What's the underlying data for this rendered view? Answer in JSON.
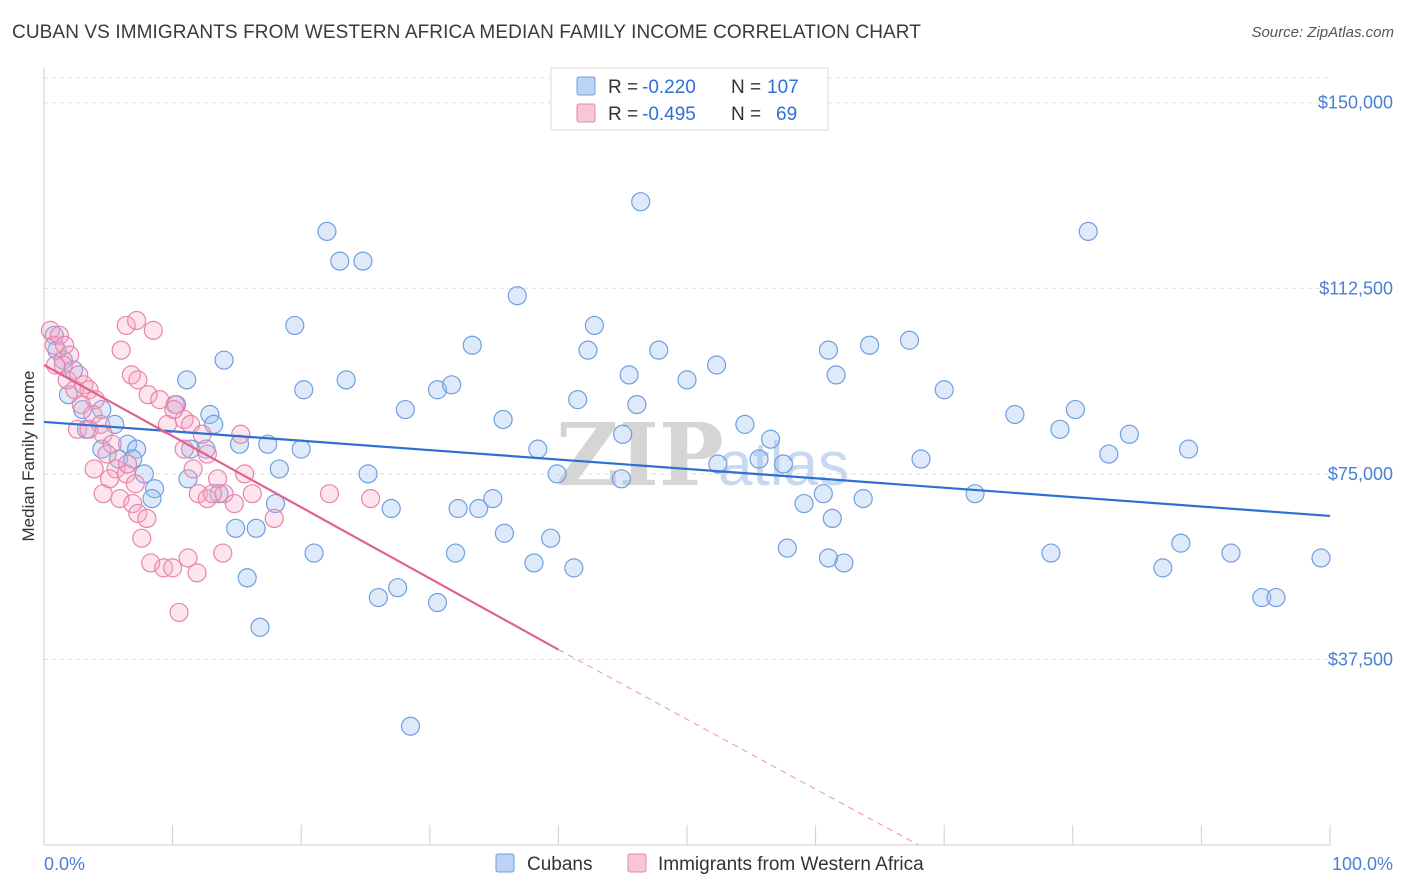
{
  "title": "CUBAN VS IMMIGRANTS FROM WESTERN AFRICA MEDIAN FAMILY INCOME CORRELATION CHART",
  "source": "Source: ZipAtlas.com",
  "watermark": {
    "zip": "ZIP",
    "atlas": "atlas"
  },
  "legend": {
    "r_label": "R = ",
    "n_label": "N = ",
    "items": [
      {
        "r": "-0.220",
        "n": "107",
        "color": "#6f9fe0",
        "fill": "#bcd3f3"
      },
      {
        "r": "-0.495",
        "n": "69",
        "color": "#e985aa",
        "fill": "#f7c6d7"
      }
    ]
  },
  "bottom_legend": [
    "Cubans",
    "Immigrants from Western Africa"
  ],
  "chart_data": {
    "type": "scatter",
    "title": "CUBAN VS IMMIGRANTS FROM WESTERN AFRICA MEDIAN FAMILY INCOME CORRELATION CHART",
    "xlabel": "",
    "ylabel": "Median Family Income",
    "xlim": [
      0,
      100
    ],
    "ylim": [
      0,
      155000
    ],
    "x_tick_labels": [
      "0.0%",
      "100.0%"
    ],
    "y_ticks": [
      37500,
      75000,
      112500,
      150000
    ],
    "y_tick_labels": [
      "$37,500",
      "$75,000",
      "$112,500",
      "$150,000"
    ],
    "grid": "horizontal dashed",
    "legend_position": "top-center",
    "series": [
      {
        "name": "Cubans",
        "color": "#5b8fd9",
        "trend": {
          "x": [
            0,
            100
          ],
          "y": [
            85500,
            66500
          ],
          "dashed_from": null
        },
        "points": [
          [
            0.8,
            103
          ],
          [
            1.0,
            100
          ],
          [
            1.5,
            98
          ],
          [
            2.3,
            96
          ],
          [
            1.9,
            91
          ],
          [
            4.5,
            88
          ],
          [
            3.0,
            88
          ],
          [
            5.5,
            85
          ],
          [
            3.3,
            84
          ],
          [
            6.5,
            81
          ],
          [
            4.5,
            80
          ],
          [
            7.2,
            80
          ],
          [
            5.8,
            78
          ],
          [
            6.9,
            78
          ],
          [
            7.8,
            75
          ],
          [
            8.6,
            72
          ],
          [
            11.1,
            94
          ],
          [
            10.3,
            89
          ],
          [
            12.9,
            87
          ],
          [
            13.2,
            85
          ],
          [
            11.4,
            80
          ],
          [
            12.6,
            80
          ],
          [
            11.2,
            74
          ],
          [
            13.6,
            71
          ],
          [
            8.4,
            70
          ],
          [
            14.0,
            98
          ],
          [
            15.2,
            81
          ],
          [
            17.4,
            81
          ],
          [
            14.9,
            64
          ],
          [
            16.5,
            64
          ],
          [
            15.8,
            54
          ],
          [
            16.8,
            44
          ],
          [
            18.0,
            69
          ],
          [
            18.3,
            76
          ],
          [
            19.5,
            105
          ],
          [
            20.0,
            80
          ],
          [
            21.0,
            59
          ],
          [
            20.2,
            92
          ],
          [
            22.0,
            124
          ],
          [
            23.0,
            118
          ],
          [
            24.8,
            118
          ],
          [
            23.5,
            94
          ],
          [
            25.2,
            75
          ],
          [
            26.0,
            50
          ],
          [
            27.0,
            68
          ],
          [
            27.5,
            52
          ],
          [
            28.1,
            88
          ],
          [
            28.5,
            24
          ],
          [
            30.6,
            92
          ],
          [
            30.6,
            49
          ],
          [
            31.7,
            93
          ],
          [
            32.0,
            59
          ],
          [
            33.3,
            101
          ],
          [
            32.2,
            68
          ],
          [
            33.8,
            68
          ],
          [
            34.9,
            70
          ],
          [
            35.8,
            63
          ],
          [
            35.7,
            86
          ],
          [
            36.8,
            111
          ],
          [
            38.1,
            57
          ],
          [
            38.4,
            80
          ],
          [
            39.4,
            62
          ],
          [
            39.9,
            75
          ],
          [
            41.2,
            56
          ],
          [
            42.3,
            100
          ],
          [
            41.5,
            90
          ],
          [
            42.8,
            105
          ],
          [
            45.0,
            83
          ],
          [
            45.5,
            95
          ],
          [
            44.9,
            74
          ],
          [
            46.1,
            89
          ],
          [
            46.4,
            130
          ],
          [
            47.8,
            100
          ],
          [
            50.0,
            94
          ],
          [
            52.3,
            97
          ],
          [
            52.4,
            77
          ],
          [
            54.5,
            85
          ],
          [
            55.6,
            78
          ],
          [
            56.5,
            82
          ],
          [
            57.5,
            77
          ],
          [
            57.8,
            60
          ],
          [
            59.1,
            69
          ],
          [
            60.6,
            71
          ],
          [
            61.0,
            100
          ],
          [
            62.2,
            57
          ],
          [
            61.3,
            66
          ],
          [
            61.6,
            95
          ],
          [
            61.0,
            58
          ],
          [
            64.2,
            101
          ],
          [
            63.7,
            70
          ],
          [
            67.3,
            102
          ],
          [
            68.2,
            78
          ],
          [
            70.0,
            92
          ],
          [
            72.4,
            71
          ],
          [
            75.5,
            87
          ],
          [
            78.3,
            59
          ],
          [
            79.0,
            84
          ],
          [
            80.2,
            88
          ],
          [
            81.2,
            124
          ],
          [
            82.8,
            79
          ],
          [
            84.4,
            83
          ],
          [
            87.0,
            56
          ],
          [
            88.4,
            61
          ],
          [
            89.0,
            80
          ],
          [
            92.3,
            59
          ],
          [
            94.7,
            50
          ],
          [
            95.8,
            50
          ],
          [
            99.3,
            58
          ]
        ]
      },
      {
        "name": "Immigrants from Western Africa",
        "color": "#e985aa",
        "trend": {
          "x": [
            0,
            40
          ],
          "y": [
            97000,
            39500
          ],
          "dashed_to": [
            68,
            0
          ]
        },
        "points": [
          [
            0.5,
            104
          ],
          [
            0.8,
            101
          ],
          [
            1.2,
            103
          ],
          [
            1.6,
            101
          ],
          [
            2.0,
            99
          ],
          [
            1.5,
            97
          ],
          [
            0.9,
            97
          ],
          [
            1.8,
            94
          ],
          [
            2.4,
            92
          ],
          [
            2.7,
            95
          ],
          [
            3.1,
            93
          ],
          [
            3.5,
            92
          ],
          [
            4.0,
            90
          ],
          [
            2.9,
            89
          ],
          [
            3.8,
            87
          ],
          [
            4.4,
            85
          ],
          [
            2.6,
            84
          ],
          [
            3.5,
            84
          ],
          [
            4.6,
            83
          ],
          [
            5.3,
            81
          ],
          [
            4.9,
            79
          ],
          [
            3.9,
            76
          ],
          [
            5.6,
            76
          ],
          [
            6.4,
            75
          ],
          [
            4.6,
            71
          ],
          [
            5.1,
            74
          ],
          [
            6.5,
            77
          ],
          [
            7.1,
            73
          ],
          [
            5.9,
            70
          ],
          [
            6.9,
            69
          ],
          [
            7.3,
            67
          ],
          [
            8.0,
            66
          ],
          [
            7.6,
            62
          ],
          [
            8.3,
            57
          ],
          [
            9.3,
            56
          ],
          [
            10.0,
            56
          ],
          [
            10.5,
            47
          ],
          [
            6.8,
            95
          ],
          [
            6.0,
            100
          ],
          [
            6.4,
            105
          ],
          [
            7.2,
            106
          ],
          [
            8.5,
            104
          ],
          [
            7.3,
            94
          ],
          [
            8.1,
            91
          ],
          [
            9.0,
            90
          ],
          [
            10.2,
            89
          ],
          [
            10.9,
            86
          ],
          [
            11.4,
            85
          ],
          [
            12.3,
            83
          ],
          [
            12.7,
            79
          ],
          [
            9.6,
            85
          ],
          [
            10.1,
            88
          ],
          [
            10.9,
            80
          ],
          [
            11.6,
            76
          ],
          [
            12.0,
            71
          ],
          [
            12.7,
            70
          ],
          [
            13.5,
            74
          ],
          [
            14.0,
            71
          ],
          [
            15.3,
            83
          ],
          [
            15.6,
            75
          ],
          [
            16.2,
            71
          ],
          [
            14.8,
            69
          ],
          [
            13.1,
            71
          ],
          [
            17.9,
            66
          ],
          [
            22.2,
            71
          ],
          [
            25.4,
            70
          ],
          [
            11.2,
            58
          ],
          [
            11.9,
            55
          ],
          [
            13.9,
            59
          ]
        ]
      }
    ]
  }
}
